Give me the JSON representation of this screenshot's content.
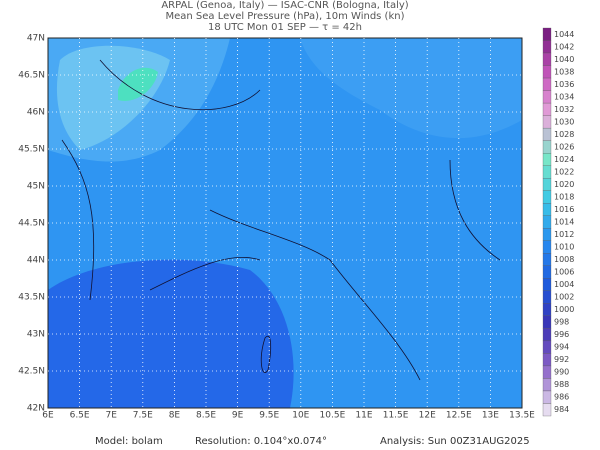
{
  "header": {
    "line1": "ARPAL (Genoa, Italy)  —  ISAC-CNR (Bologna, Italy)",
    "line2": "Mean Sea Level Pressure (hPa), 10m Winds (kn)",
    "line3": "18 UTC Mon 01 SEP  —  τ = 42h"
  },
  "map": {
    "lon_labels": [
      "6E",
      "6.5E",
      "7E",
      "7.5E",
      "8E",
      "8.5E",
      "9E",
      "9.5E",
      "10E",
      "10.5E",
      "11E",
      "11.5E",
      "12E",
      "12.5E",
      "13E",
      "13.5E"
    ],
    "lat_labels": [
      "47N",
      "46.5N",
      "46N",
      "45.5N",
      "45N",
      "44.5N",
      "44N",
      "43.5N",
      "43N",
      "42.5N",
      "42N"
    ]
  },
  "colorbar": {
    "labels": [
      1044,
      1042,
      1040,
      1038,
      1036,
      1034,
      1032,
      1030,
      1028,
      1026,
      1024,
      1022,
      1020,
      1018,
      1016,
      1014,
      1012,
      1010,
      1008,
      1006,
      1004,
      1002,
      1000,
      998,
      996,
      994,
      992,
      990,
      988,
      986,
      984
    ]
  },
  "footer": {
    "model": "Model: bolam",
    "resolution": "Resolution: 0.104°x0.074°",
    "analysis": "Analysis: Sun 00Z31AUG2025"
  }
}
